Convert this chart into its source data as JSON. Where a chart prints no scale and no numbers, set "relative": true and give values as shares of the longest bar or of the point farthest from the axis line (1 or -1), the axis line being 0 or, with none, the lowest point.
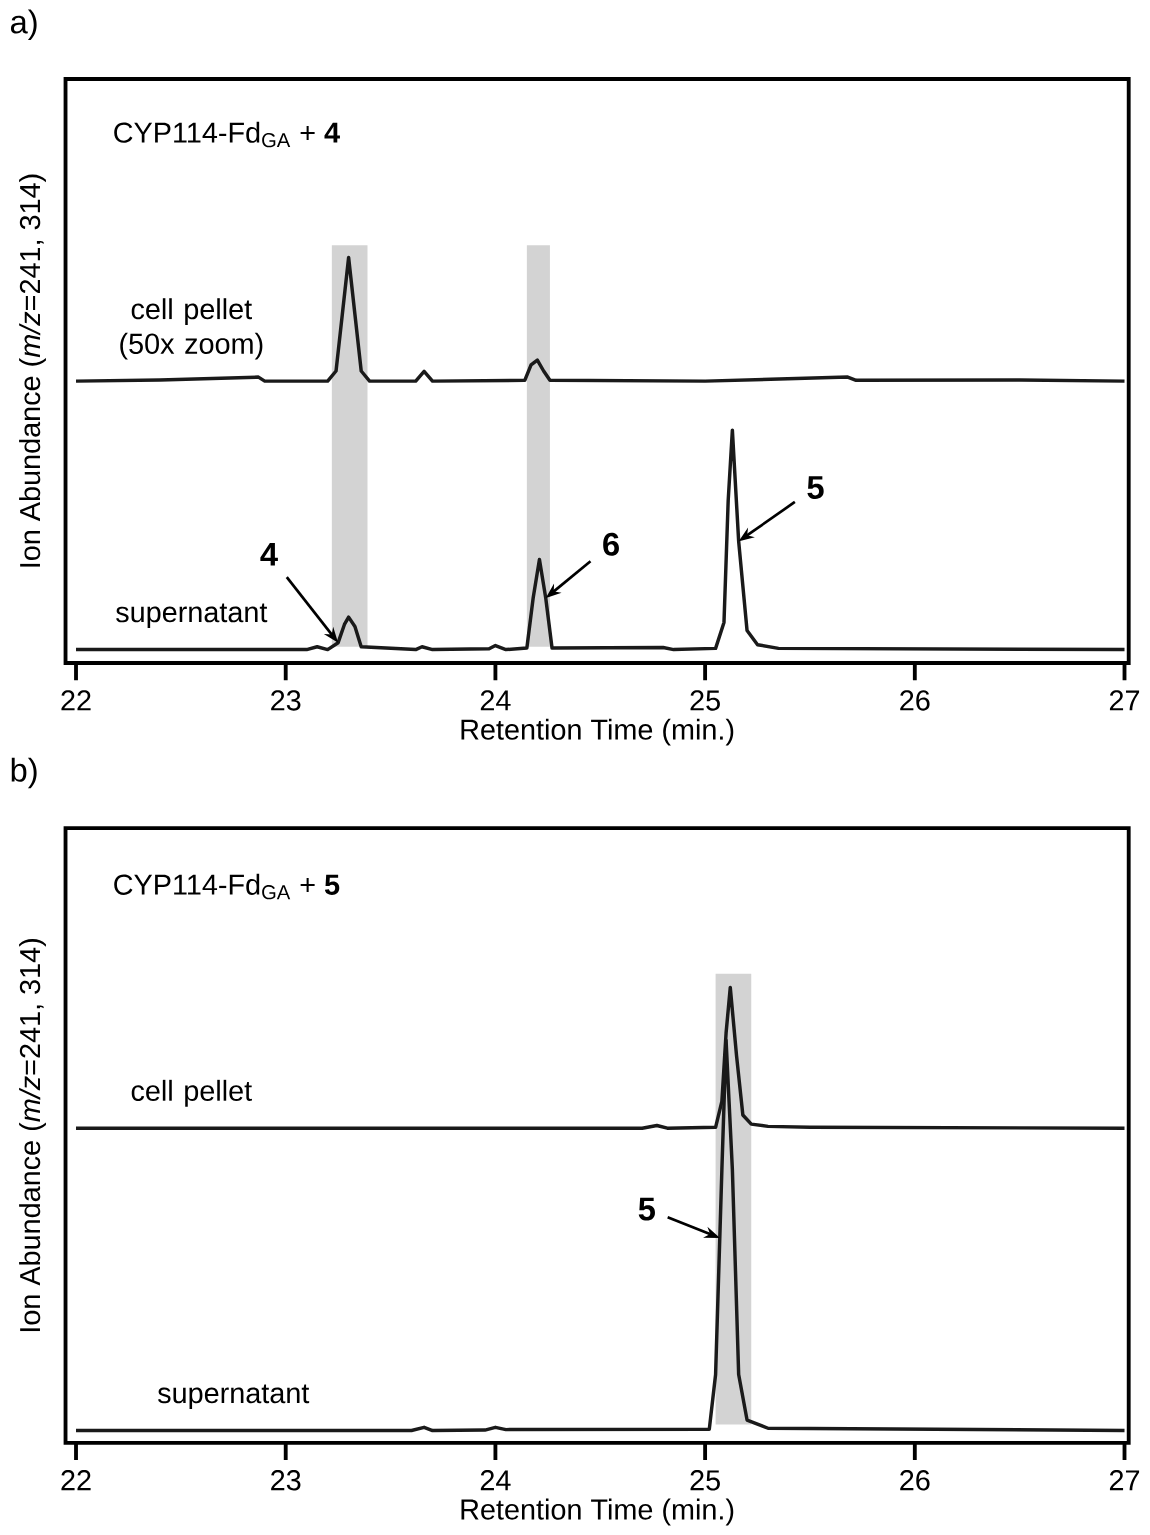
{
  "chart_data": [
    {
      "type": "line",
      "title": "a)",
      "xlabel": "Retention Time (min.)",
      "ylabel": "Ion Abundance (*m/z*=241, 314)",
      "xlim": [
        21.95,
        27.02
      ],
      "xticks": [
        22,
        23,
        24,
        25,
        26,
        27
      ],
      "relative": true,
      "series": [
        {
          "name": "cell pellet (50x zoom)",
          "color": "#1a1a1a",
          "x": [
            22.0,
            22.4,
            22.87,
            22.9,
            23.2,
            23.24,
            23.27,
            23.3,
            23.33,
            23.36,
            23.4,
            23.62,
            23.66,
            23.7,
            24.14,
            24.17,
            24.2,
            24.23,
            24.26,
            25.0,
            25.68,
            25.72,
            26.5,
            27.0
          ],
          "values": [
            0.695,
            0.698,
            0.705,
            0.695,
            0.695,
            0.72,
            0.86,
            1.0,
            0.86,
            0.72,
            0.695,
            0.695,
            0.719,
            0.695,
            0.697,
            0.735,
            0.747,
            0.72,
            0.697,
            0.695,
            0.705,
            0.697,
            0.698,
            0.695
          ]
        },
        {
          "name": "supernatant",
          "color": "#1a1a1a",
          "x": [
            22.0,
            23.1,
            23.15,
            23.2,
            23.25,
            23.28,
            23.3,
            23.33,
            23.36,
            23.62,
            23.65,
            23.7,
            23.97,
            24.0,
            24.05,
            24.15,
            24.18,
            24.21,
            24.24,
            24.27,
            24.8,
            24.85,
            25.05,
            25.09,
            25.11,
            25.13,
            25.16,
            25.2,
            25.25,
            25.35,
            27.0
          ],
          "values": [
            0.033,
            0.033,
            0.04,
            0.033,
            0.05,
            0.095,
            0.113,
            0.09,
            0.04,
            0.033,
            0.04,
            0.033,
            0.035,
            0.043,
            0.033,
            0.037,
            0.16,
            0.255,
            0.16,
            0.037,
            0.038,
            0.033,
            0.036,
            0.1,
            0.4,
            0.574,
            0.3,
            0.08,
            0.045,
            0.036,
            0.033
          ]
        }
      ],
      "bands": [
        {
          "axis": "x",
          "from": 23.22,
          "to": 23.39,
          "color": "#d3d3d3"
        },
        {
          "axis": "x",
          "from": 24.15,
          "to": 24.26,
          "color": "#d3d3d3"
        }
      ],
      "annotations": [
        "CYP114-Fd$_{GA}$ + **4**",
        {
          "text": "4",
          "x": 23.25,
          "y": 0.05
        },
        {
          "text": "6",
          "x": 24.24,
          "y": 0.16
        },
        {
          "text": "5",
          "x": 25.16,
          "y": 0.3
        }
      ]
    },
    {
      "type": "line",
      "title": "b)",
      "xlabel": "Retention Time (min.)",
      "ylabel": "Ion Abundance (*m/z*=241, 314)",
      "xlim": [
        21.95,
        27.02
      ],
      "xticks": [
        22,
        23,
        24,
        25,
        26,
        27
      ],
      "relative": true,
      "series": [
        {
          "name": "cell pellet",
          "color": "#1a1a1a",
          "x": [
            22.0,
            24.7,
            24.77,
            24.82,
            25.05,
            25.08,
            25.1,
            25.12,
            25.15,
            25.18,
            25.22,
            25.3,
            25.5,
            27.0
          ],
          "values": [
            0.691,
            0.691,
            0.697,
            0.691,
            0.693,
            0.75,
            0.9,
            1.0,
            0.85,
            0.72,
            0.7,
            0.695,
            0.693,
            0.691
          ]
        },
        {
          "name": "supernatant",
          "color": "#1a1a1a",
          "x": [
            22.0,
            23.6,
            23.66,
            23.7,
            23.95,
            24.0,
            24.05,
            25.02,
            25.05,
            25.08,
            25.1,
            25.13,
            25.16,
            25.2,
            25.3,
            27.0
          ],
          "values": [
            0.027,
            0.027,
            0.034,
            0.027,
            0.028,
            0.034,
            0.029,
            0.03,
            0.15,
            0.6,
            0.884,
            0.6,
            0.15,
            0.05,
            0.032,
            0.027
          ]
        }
      ],
      "bands": [
        {
          "axis": "x",
          "from": 25.05,
          "to": 25.22,
          "color": "#d3d3d3"
        }
      ],
      "annotations": [
        "CYP114-Fd$_{GA}$ + **5**",
        {
          "text": "5",
          "x": 25.07,
          "y": 0.45
        }
      ]
    }
  ]
}
